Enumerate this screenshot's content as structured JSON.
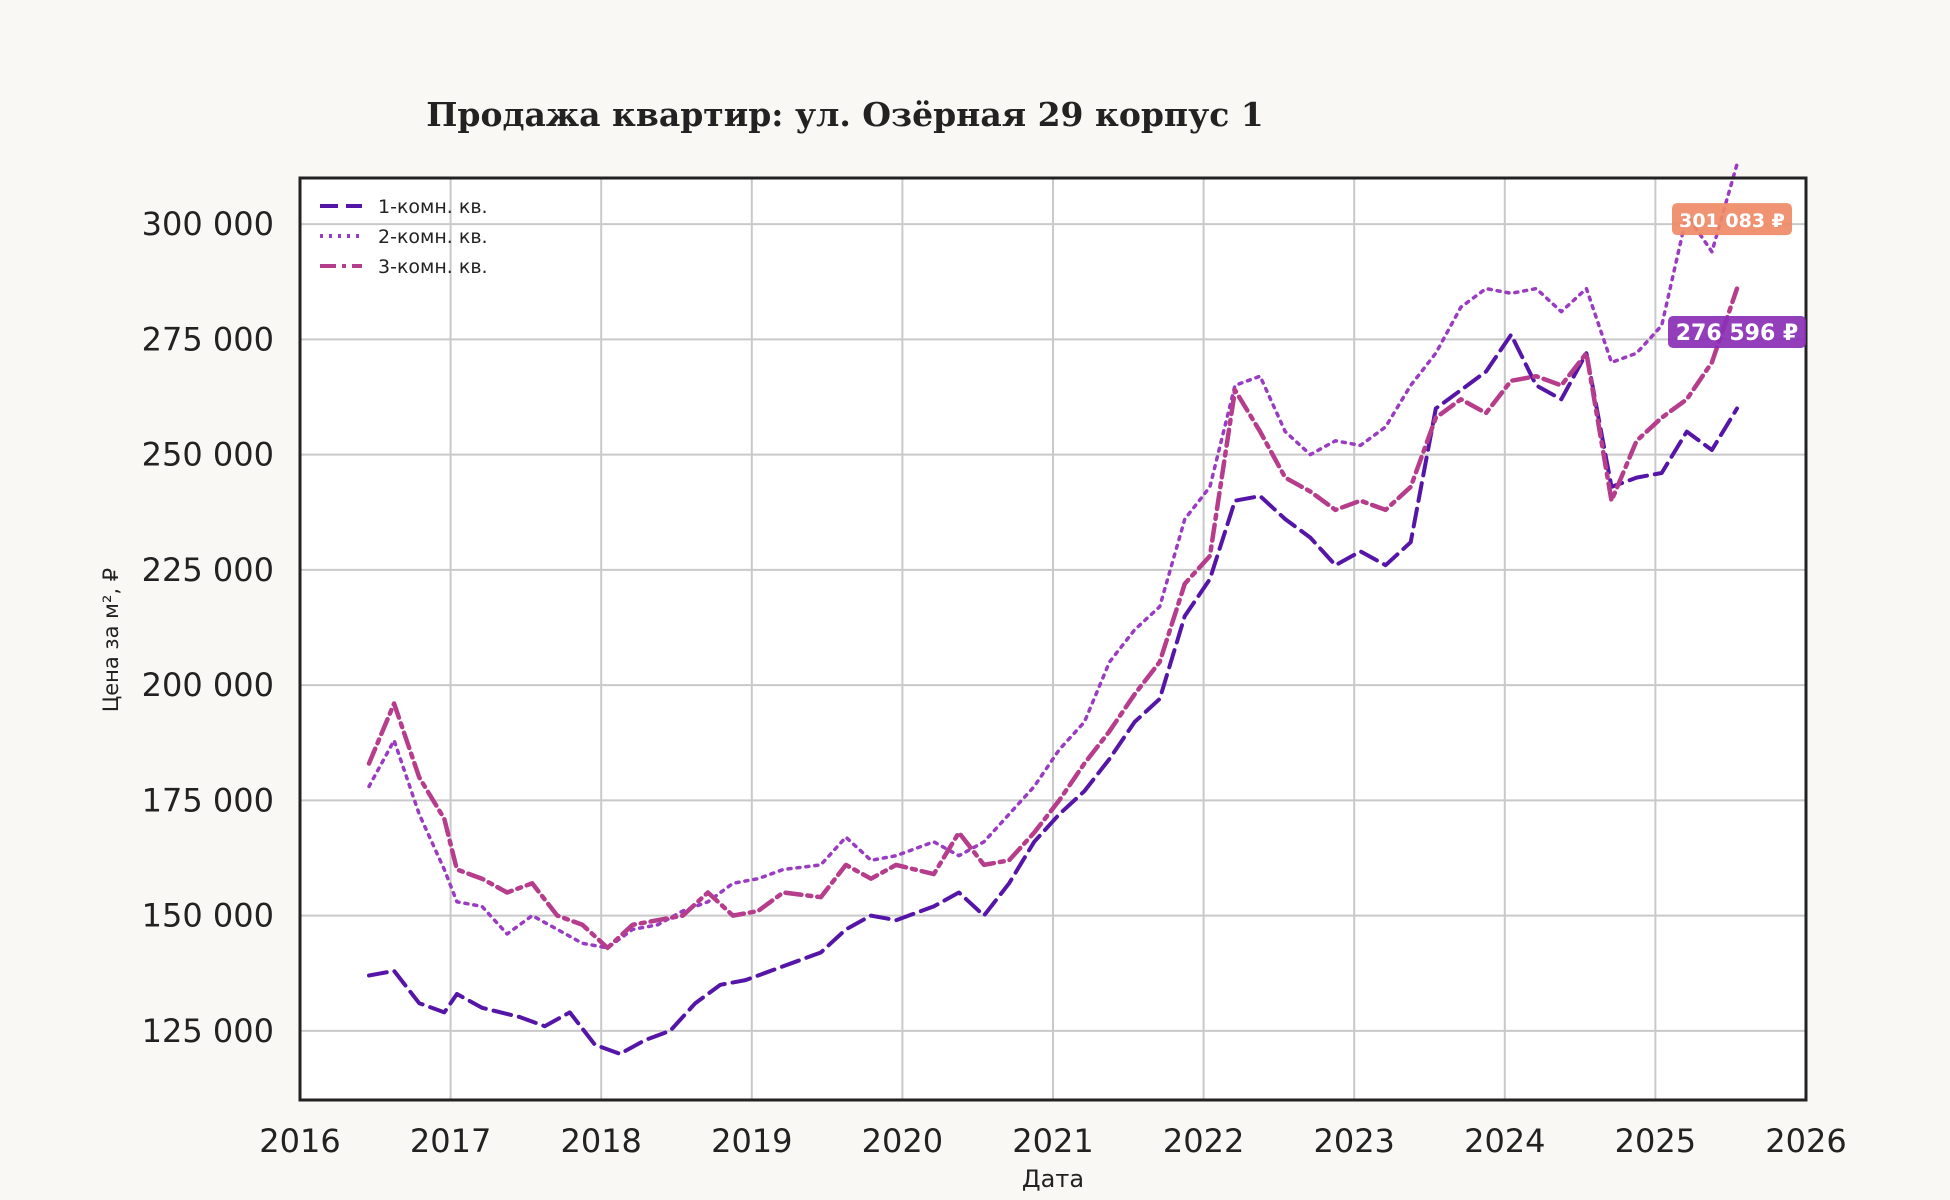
{
  "chart_data": {
    "type": "line",
    "title": "Продажа квартир: ул. Озёрная 29 корпус 1",
    "xlabel": "Дата",
    "ylabel": "Цена за м², ₽",
    "xlim": [
      2016,
      2026
    ],
    "ylim": [
      110000,
      310000
    ],
    "x_ticks": [
      "2016",
      "2017",
      "2018",
      "2019",
      "2020",
      "2021",
      "2022",
      "2023",
      "2024",
      "2025",
      "2026"
    ],
    "y_ticks": [
      "125 000",
      "150 000",
      "175 000",
      "200 000",
      "225 000",
      "250 000",
      "275 000",
      "300 000"
    ],
    "y_tick_values": [
      125000,
      150000,
      175000,
      200000,
      225000,
      250000,
      275000,
      300000
    ],
    "grid": true,
    "legend_position": "top-left",
    "series": [
      {
        "name": "1-комн. кв.",
        "color": "#5516a8",
        "dash": "dashed",
        "points": [
          [
            "2016-06",
            137000
          ],
          [
            "2016-08",
            138000
          ],
          [
            "2016-10",
            131000
          ],
          [
            "2016-12",
            129000
          ],
          [
            "2017-01",
            133000
          ],
          [
            "2017-03",
            130000
          ],
          [
            "2017-06",
            128000
          ],
          [
            "2017-08",
            126000
          ],
          [
            "2017-10",
            129000
          ],
          [
            "2017-12",
            122000
          ],
          [
            "2018-02",
            120000
          ],
          [
            "2018-04",
            123000
          ],
          [
            "2018-06",
            125000
          ],
          [
            "2018-08",
            131000
          ],
          [
            "2018-10",
            135000
          ],
          [
            "2018-12",
            136000
          ],
          [
            "2019-03",
            139000
          ],
          [
            "2019-06",
            142000
          ],
          [
            "2019-08",
            147000
          ],
          [
            "2019-10",
            150000
          ],
          [
            "2019-12",
            149000
          ],
          [
            "2020-03",
            152000
          ],
          [
            "2020-05",
            155000
          ],
          [
            "2020-07",
            150000
          ],
          [
            "2020-09",
            157000
          ],
          [
            "2020-11",
            166000
          ],
          [
            "2021-01",
            172000
          ],
          [
            "2021-03",
            177000
          ],
          [
            "2021-05",
            184000
          ],
          [
            "2021-07",
            192000
          ],
          [
            "2021-09",
            197000
          ],
          [
            "2021-11",
            215000
          ],
          [
            "2022-01",
            223000
          ],
          [
            "2022-03",
            240000
          ],
          [
            "2022-05",
            241000
          ],
          [
            "2022-07",
            236000
          ],
          [
            "2022-09",
            232000
          ],
          [
            "2022-11",
            226000
          ],
          [
            "2023-01",
            229000
          ],
          [
            "2023-03",
            226000
          ],
          [
            "2023-05",
            231000
          ],
          [
            "2023-07",
            260000
          ],
          [
            "2023-09",
            264000
          ],
          [
            "2023-11",
            268000
          ],
          [
            "2024-01",
            276000
          ],
          [
            "2024-03",
            265000
          ],
          [
            "2024-05",
            262000
          ],
          [
            "2024-07",
            272000
          ],
          [
            "2024-09",
            243000
          ],
          [
            "2024-11",
            245000
          ],
          [
            "2025-01",
            246000
          ],
          [
            "2025-03",
            255000
          ],
          [
            "2025-05",
            251000
          ],
          [
            "2025-07",
            260000
          ]
        ]
      },
      {
        "name": "2-комн. кв.",
        "color": "#9a3cc2",
        "dash": "dotted",
        "points": [
          [
            "2016-06",
            178000
          ],
          [
            "2016-08",
            188000
          ],
          [
            "2016-10",
            172000
          ],
          [
            "2016-12",
            160000
          ],
          [
            "2017-01",
            153000
          ],
          [
            "2017-03",
            152000
          ],
          [
            "2017-05",
            146000
          ],
          [
            "2017-07",
            150000
          ],
          [
            "2017-09",
            147000
          ],
          [
            "2017-11",
            144000
          ],
          [
            "2018-01",
            143000
          ],
          [
            "2018-03",
            147000
          ],
          [
            "2018-05",
            148000
          ],
          [
            "2018-07",
            151000
          ],
          [
            "2018-09",
            153000
          ],
          [
            "2018-11",
            157000
          ],
          [
            "2019-01",
            158000
          ],
          [
            "2019-03",
            160000
          ],
          [
            "2019-06",
            161000
          ],
          [
            "2019-08",
            167000
          ],
          [
            "2019-10",
            162000
          ],
          [
            "2019-12",
            163000
          ],
          [
            "2020-03",
            166000
          ],
          [
            "2020-05",
            163000
          ],
          [
            "2020-07",
            166000
          ],
          [
            "2020-09",
            172000
          ],
          [
            "2020-11",
            178000
          ],
          [
            "2021-01",
            186000
          ],
          [
            "2021-03",
            192000
          ],
          [
            "2021-05",
            205000
          ],
          [
            "2021-07",
            212000
          ],
          [
            "2021-09",
            217000
          ],
          [
            "2021-11",
            236000
          ],
          [
            "2022-01",
            243000
          ],
          [
            "2022-03",
            265000
          ],
          [
            "2022-05",
            267000
          ],
          [
            "2022-07",
            255000
          ],
          [
            "2022-09",
            250000
          ],
          [
            "2022-11",
            253000
          ],
          [
            "2023-01",
            252000
          ],
          [
            "2023-03",
            256000
          ],
          [
            "2023-05",
            265000
          ],
          [
            "2023-07",
            272000
          ],
          [
            "2023-09",
            282000
          ],
          [
            "2023-11",
            286000
          ],
          [
            "2024-01",
            285000
          ],
          [
            "2024-03",
            286000
          ],
          [
            "2024-05",
            281000
          ],
          [
            "2024-07",
            286000
          ],
          [
            "2024-09",
            270000
          ],
          [
            "2024-11",
            272000
          ],
          [
            "2025-01",
            278000
          ],
          [
            "2025-03",
            302000
          ],
          [
            "2025-05",
            294000
          ],
          [
            "2025-07",
            313000
          ]
        ]
      },
      {
        "name": "3-комн. кв.",
        "color": "#b63d8b",
        "dash": "dashdot",
        "points": [
          [
            "2016-06",
            183000
          ],
          [
            "2016-08",
            196000
          ],
          [
            "2016-10",
            180000
          ],
          [
            "2016-12",
            171000
          ],
          [
            "2017-01",
            160000
          ],
          [
            "2017-03",
            158000
          ],
          [
            "2017-05",
            155000
          ],
          [
            "2017-07",
            157000
          ],
          [
            "2017-09",
            150000
          ],
          [
            "2017-11",
            148000
          ],
          [
            "2018-01",
            143000
          ],
          [
            "2018-03",
            148000
          ],
          [
            "2018-05",
            149000
          ],
          [
            "2018-07",
            150000
          ],
          [
            "2018-09",
            155000
          ],
          [
            "2018-11",
            150000
          ],
          [
            "2019-01",
            151000
          ],
          [
            "2019-03",
            155000
          ],
          [
            "2019-06",
            154000
          ],
          [
            "2019-08",
            161000
          ],
          [
            "2019-10",
            158000
          ],
          [
            "2019-12",
            161000
          ],
          [
            "2020-03",
            159000
          ],
          [
            "2020-05",
            168000
          ],
          [
            "2020-07",
            161000
          ],
          [
            "2020-09",
            162000
          ],
          [
            "2020-11",
            168000
          ],
          [
            "2021-01",
            175000
          ],
          [
            "2021-03",
            183000
          ],
          [
            "2021-05",
            190000
          ],
          [
            "2021-07",
            198000
          ],
          [
            "2021-09",
            205000
          ],
          [
            "2021-11",
            222000
          ],
          [
            "2022-01",
            228000
          ],
          [
            "2022-03",
            264000
          ],
          [
            "2022-05",
            255000
          ],
          [
            "2022-07",
            245000
          ],
          [
            "2022-09",
            242000
          ],
          [
            "2022-11",
            238000
          ],
          [
            "2023-01",
            240000
          ],
          [
            "2023-03",
            238000
          ],
          [
            "2023-05",
            243000
          ],
          [
            "2023-07",
            258000
          ],
          [
            "2023-09",
            262000
          ],
          [
            "2023-11",
            259000
          ],
          [
            "2024-01",
            266000
          ],
          [
            "2024-03",
            267000
          ],
          [
            "2024-05",
            265000
          ],
          [
            "2024-07",
            272000
          ],
          [
            "2024-09",
            240000
          ],
          [
            "2024-11",
            253000
          ],
          [
            "2025-01",
            258000
          ],
          [
            "2025-03",
            262000
          ],
          [
            "2025-05",
            270000
          ],
          [
            "2025-07",
            286000
          ]
        ]
      }
    ],
    "annotations": [
      {
        "label": "301 083 ₽",
        "value": 301083,
        "color": "#ef8a66"
      },
      {
        "label": "276 596 ₽",
        "value": 276596,
        "color": "#8a2fb5"
      }
    ]
  }
}
